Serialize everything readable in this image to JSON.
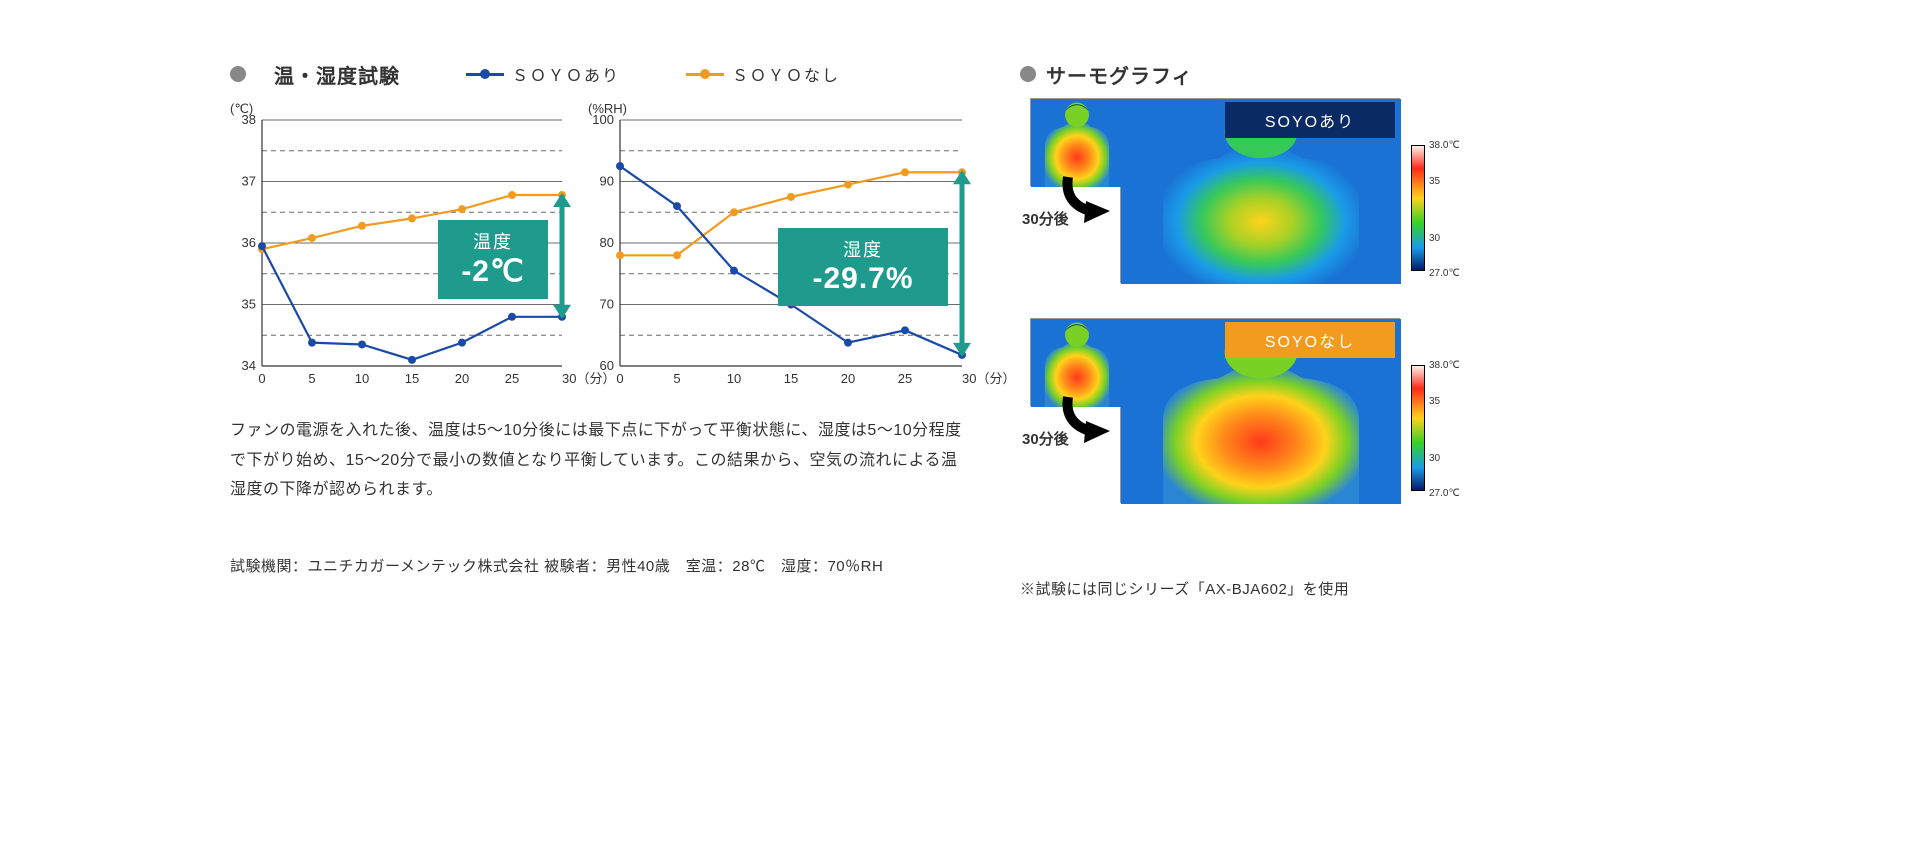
{
  "left": {
    "title": "温・湿度試験",
    "legend_a": "ＳＯＹＯあり",
    "legend_b": "ＳＯＹＯなし",
    "chart_temp": {
      "type": "line",
      "y_unit": "(℃)",
      "x_unit": "30（分）",
      "xlim": [
        0,
        30
      ],
      "x_ticks": [
        0,
        5,
        10,
        15,
        20,
        25,
        30
      ],
      "ylim": [
        34,
        38
      ],
      "y_ticks": [
        34,
        35,
        36,
        37,
        38
      ],
      "y_dashed": [
        34.5,
        35.5,
        36.5,
        37.5
      ],
      "grid_color": "#6b6b6b",
      "dash_color": "#6b6b6b",
      "axis_color": "#333333",
      "tick_fontsize": 13,
      "series": {
        "with": {
          "color": "#1a4aa8",
          "line_width": 2.2,
          "marker": "circle",
          "marker_size": 4,
          "x": [
            0,
            5,
            10,
            15,
            20,
            25,
            30
          ],
          "y": [
            35.95,
            34.38,
            34.35,
            34.1,
            34.38,
            34.8,
            34.8
          ]
        },
        "without": {
          "color": "#f29b1e",
          "line_width": 2.2,
          "marker": "circle",
          "marker_size": 4,
          "x": [
            0,
            5,
            10,
            15,
            20,
            25,
            30
          ],
          "y": [
            35.9,
            36.08,
            36.28,
            36.4,
            36.55,
            36.78,
            36.78
          ]
        }
      },
      "callout": {
        "label": "温度",
        "value": "-2℃",
        "bg": "#1f9b8e",
        "arrow_color": "#1f9b8e"
      }
    },
    "chart_hum": {
      "type": "line",
      "y_unit": "(%RH)",
      "x_unit": "30（分）",
      "xlim": [
        0,
        30
      ],
      "x_ticks": [
        0,
        5,
        10,
        15,
        20,
        25,
        30
      ],
      "ylim": [
        60,
        100
      ],
      "y_ticks": [
        60,
        70,
        80,
        90,
        100
      ],
      "y_dashed": [
        65,
        75,
        85,
        95
      ],
      "grid_color": "#6b6b6b",
      "dash_color": "#6b6b6b",
      "axis_color": "#333333",
      "tick_fontsize": 13,
      "series": {
        "with": {
          "color": "#1a4aa8",
          "line_width": 2.2,
          "marker": "circle",
          "marker_size": 4,
          "x": [
            0,
            5,
            10,
            15,
            20,
            25,
            30
          ],
          "y": [
            92.5,
            86.0,
            75.5,
            70.0,
            63.8,
            65.8,
            61.8
          ]
        },
        "without": {
          "color": "#f29b1e",
          "line_width": 2.2,
          "marker": "circle",
          "marker_size": 4,
          "x": [
            0,
            5,
            10,
            15,
            20,
            25,
            30
          ],
          "y": [
            78.0,
            78.0,
            85.0,
            87.5,
            89.5,
            91.5,
            91.5
          ]
        }
      },
      "callout": {
        "label": "湿度",
        "value": "-29.7%",
        "bg": "#1f9b8e",
        "arrow_color": "#1f9b8e"
      }
    },
    "paragraph": "ファンの電源を入れた後、温度は5～10分後には最下点に下がって平衡状態に、湿度は5～10分程度で下がり始め、15～20分で最小の数値となり平衡しています。この結果から、空気の流れによる温湿度の下降が認められます。",
    "footer": "試験機関：ユニチカガーメンテック株式会社 被験者：男性40歳　室温：28℃　湿度：70％RH"
  },
  "right": {
    "title": "サーモグラフィ",
    "panels": [
      {
        "label": "SOYOあり",
        "label_bg": "#0a2a66",
        "mini_label": "30分後"
      },
      {
        "label": "SOYOなし",
        "label_bg": "#f29b1e",
        "mini_label": "30分後"
      }
    ],
    "colorbar": {
      "ticks": [
        {
          "v": "38.0℃",
          "pos": 0
        },
        {
          "v": "35",
          "pos": 0.28
        },
        {
          "v": "30",
          "pos": 0.73
        },
        {
          "v": "27.0℃",
          "pos": 1
        }
      ],
      "gradient": [
        "#fff2e8",
        "#ff2a1a",
        "#ffd21a",
        "#36d126",
        "#1a9be8",
        "#061a66"
      ]
    },
    "thermo_bg": "#1a72d4",
    "note": "※試験には同じシリーズ「AX-BJA602」を使用"
  }
}
